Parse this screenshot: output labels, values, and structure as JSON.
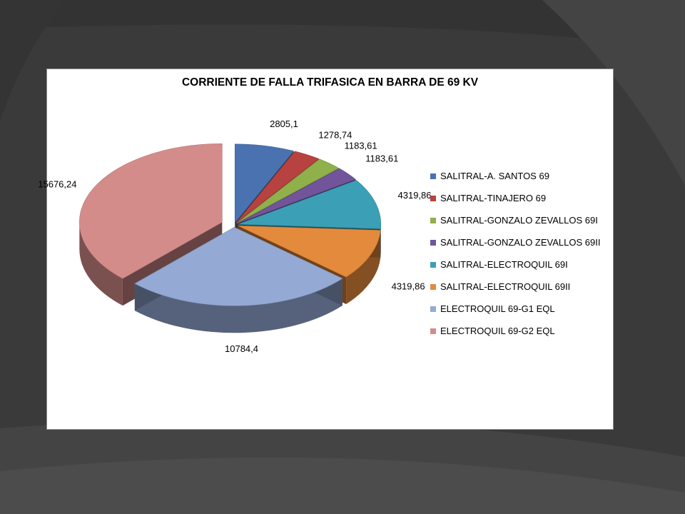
{
  "chart_data": {
    "type": "pie",
    "title": "CORRIENTE DE FALLA TRIFASICA EN BARRA DE 69 KV",
    "legend_position": "right",
    "categories": [
      "SALITRAL-A. SANTOS 69",
      "SALITRAL-TINAJERO 69",
      "SALITRAL-GONZALO ZEVALLOS 69I",
      "SALITRAL-GONZALO ZEVALLOS 69II",
      "SALITRAL-ELECTROQUIL 69I",
      "SALITRAL-ELECTROQUIL 69II",
      "ELECTROQUIL 69-G1 EQL",
      "ELECTROQUIL 69-G2 EQL"
    ],
    "values": [
      2805.1,
      1278.74,
      1183.61,
      1183.61,
      4319.86,
      4319.86,
      10784.4,
      15676.24
    ],
    "data_labels": [
      "2805,1",
      "1278,74",
      "1183,61",
      "1183,61",
      "4319,86",
      "4319,86",
      "10784,4",
      "15676,24"
    ],
    "colors": [
      "#4a72b0",
      "#b8423f",
      "#8fb04a",
      "#71549a",
      "#3b9fb6",
      "#e48a3c",
      "#94a9d4",
      "#d48c8a"
    ],
    "exploded_slices": [
      "ELECTROQUIL 69-G2 EQL"
    ]
  }
}
